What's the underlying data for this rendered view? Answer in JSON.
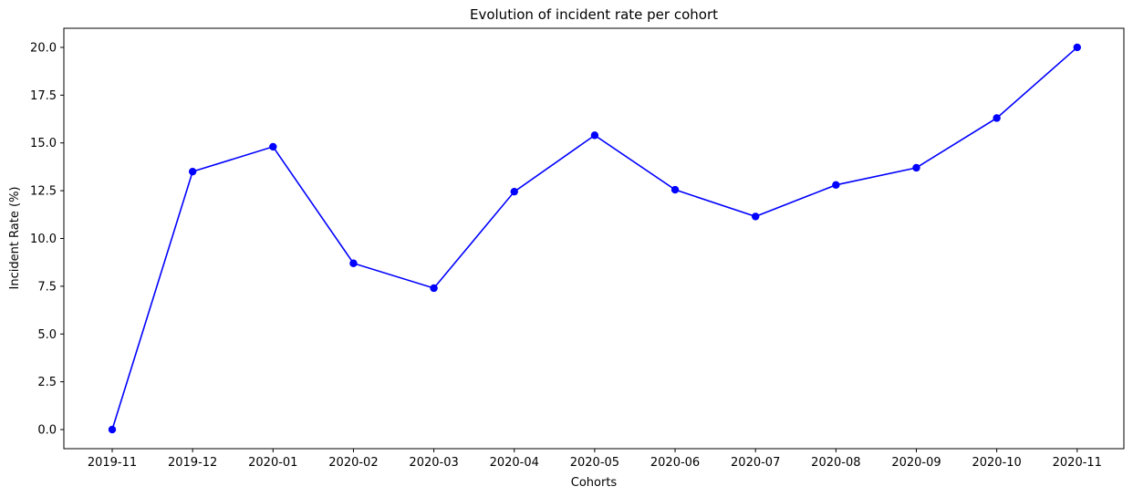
{
  "chart_data": {
    "type": "line",
    "title": "Evolution of incident rate per cohort",
    "xlabel": "Cohorts",
    "ylabel": "Incident Rate (%)",
    "categories": [
      "2019-11",
      "2019-12",
      "2020-01",
      "2020-02",
      "2020-03",
      "2020-04",
      "2020-05",
      "2020-06",
      "2020-07",
      "2020-08",
      "2020-09",
      "2020-10",
      "2020-11"
    ],
    "series": [
      {
        "values": [
          0.0,
          13.5,
          14.8,
          8.7,
          7.4,
          12.45,
          15.4,
          12.55,
          11.15,
          12.8,
          13.7,
          16.3,
          20.0
        ],
        "color": "#0000ff",
        "marker": "circle"
      }
    ],
    "ylim": [
      -1.0,
      21.0
    ],
    "yticks": [
      "0.0",
      "2.5",
      "5.0",
      "7.5",
      "10.0",
      "12.5",
      "15.0",
      "17.5",
      "20.0"
    ],
    "grid": false,
    "legend": false
  }
}
